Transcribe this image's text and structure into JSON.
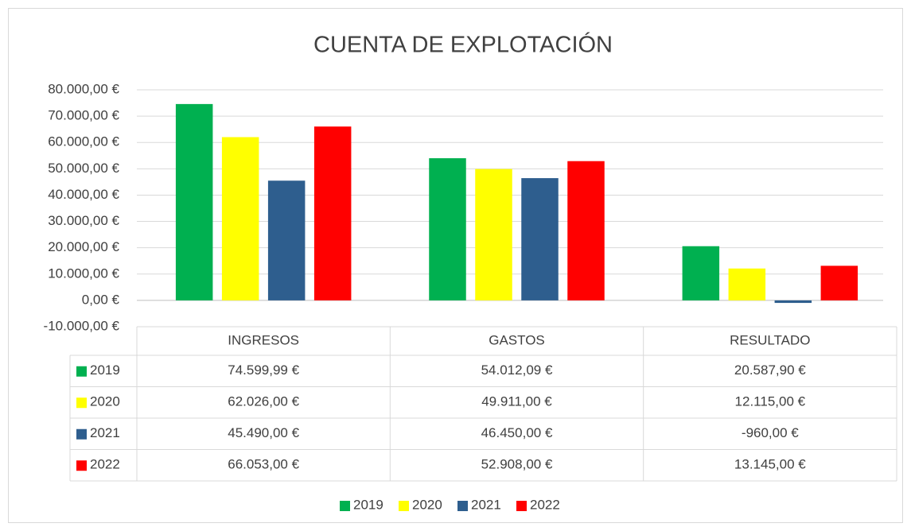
{
  "chart_data": {
    "type": "bar",
    "title": "CUENTA DE EXPLOTACIÓN",
    "categories": [
      "INGRESOS",
      "GASTOS",
      "RESULTADO"
    ],
    "series": [
      {
        "name": "2019",
        "color": "#00b050",
        "values": [
          74599.99,
          54012.09,
          20587.9
        ],
        "value_labels": [
          "74.599,99 €",
          "54.012,09 €",
          "20.587,90 €"
        ]
      },
      {
        "name": "2020",
        "color": "#ffff00",
        "values": [
          62026,
          49911,
          12115
        ],
        "value_labels": [
          "62.026,00 €",
          "49.911,00 €",
          "12.115,00 €"
        ]
      },
      {
        "name": "2021",
        "color": "#2e5e8e",
        "values": [
          45490,
          46450,
          -960
        ],
        "value_labels": [
          "45.490,00 €",
          "46.450,00 €",
          "-960,00 €"
        ]
      },
      {
        "name": "2022",
        "color": "#ff0000",
        "values": [
          66053,
          52908,
          13145
        ],
        "value_labels": [
          "66.053,00 €",
          "52.908,00 €",
          "13.145,00 €"
        ]
      }
    ],
    "ylim": [
      -10000,
      80000
    ],
    "yticks": [
      {
        "value": -10000,
        "label": "-10.000,00 €"
      },
      {
        "value": 0,
        "label": "0,00 €"
      },
      {
        "value": 10000,
        "label": "10.000,00 €"
      },
      {
        "value": 20000,
        "label": "20.000,00 €"
      },
      {
        "value": 30000,
        "label": "30.000,00 €"
      },
      {
        "value": 40000,
        "label": "40.000,00 €"
      },
      {
        "value": 50000,
        "label": "50.000,00 €"
      },
      {
        "value": 60000,
        "label": "60.000,00 €"
      },
      {
        "value": 70000,
        "label": "70.000,00 €"
      },
      {
        "value": 80000,
        "label": "80.000,00 €"
      }
    ],
    "grid": true,
    "legend": "bottom"
  }
}
